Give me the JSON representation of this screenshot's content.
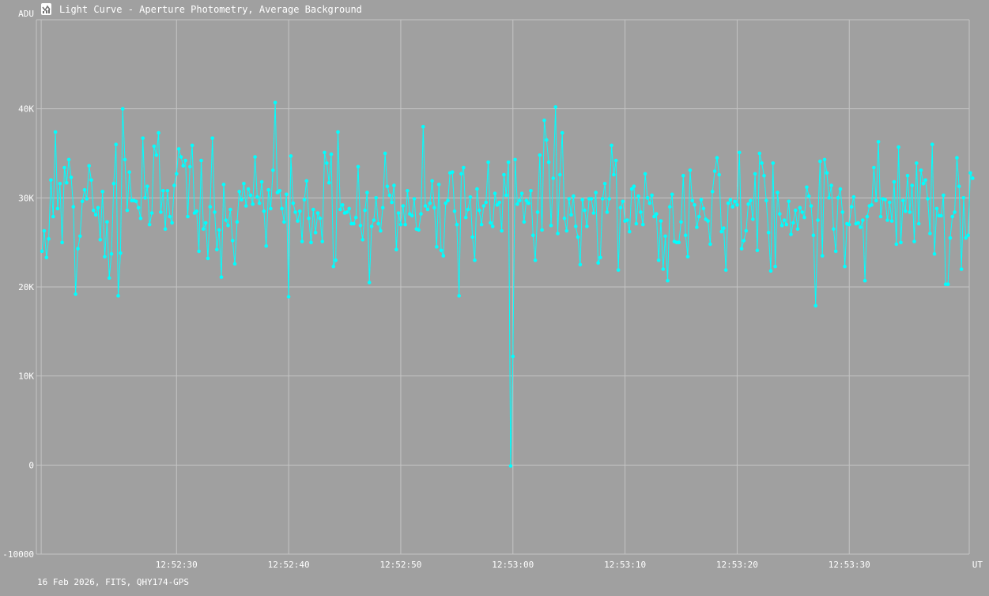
{
  "window": {
    "title": "Light Curve - Aperture Photometry, Average Background",
    "icon": "light-curve-app-icon"
  },
  "footer": {
    "text": "16 Feb 2026, FITS, QHY174-GPS"
  },
  "colors": {
    "background": "#a0a0a0",
    "grid": "#c4c4c4",
    "series": "#00ffff",
    "text": "#ffffff"
  },
  "chart_data": {
    "type": "line",
    "ylabel": "ADU",
    "xlabel": "UT",
    "ylim": [
      -10000,
      50000
    ],
    "y_ticks": [
      {
        "value": 40000,
        "label": "40K"
      },
      {
        "value": 30000,
        "label": "30K"
      },
      {
        "value": 20000,
        "label": "20K"
      },
      {
        "value": 10000,
        "label": "10K"
      },
      {
        "value": 0,
        "label": "0"
      },
      {
        "value": -10000,
        "label": "-10000"
      }
    ],
    "x_ticks": [
      {
        "value": 30,
        "label": "12:52:30"
      },
      {
        "value": 40,
        "label": "12:52:40"
      },
      {
        "value": 50,
        "label": "12:52:50"
      },
      {
        "value": 60,
        "label": "12:53:00"
      },
      {
        "value": 70,
        "label": "12:53:10"
      },
      {
        "value": 80,
        "label": "12:53:20"
      },
      {
        "value": 90,
        "label": "12:53:30"
      }
    ],
    "x_unit": "seconds after 12:52:00 UT",
    "xlim": [
      17.5,
      100.7
    ],
    "grid": true,
    "series": [
      {
        "name": "",
        "x_start": 18.0,
        "x_step": 0.2,
        "values": [
          24000,
          26300,
          23300,
          25400,
          32000,
          27900,
          37400,
          28800,
          31600,
          25000,
          33400,
          31700,
          34300,
          32300,
          29000,
          19200,
          24300,
          25700,
          29600,
          30900,
          29900,
          33600,
          32000,
          28600,
          28100,
          28900,
          25300,
          30700,
          23400,
          27300,
          21000,
          23700,
          31600,
          36000,
          19000,
          23800,
          40000,
          34300,
          28600,
          32900,
          29700,
          29700,
          29600,
          28900,
          27700,
          36700,
          30000,
          31300,
          27000,
          28300,
          35800,
          34800,
          37300,
          28400,
          30800,
          26500,
          30800,
          27900,
          27200,
          31400,
          32700,
          35500,
          34600,
          33600,
          34200,
          27900,
          33500,
          35900,
          28300,
          28500,
          24000,
          34200,
          26500,
          27200,
          23200,
          29000,
          36700,
          28400,
          24200,
          26400,
          21100,
          31500,
          27500,
          26900,
          28700,
          25200,
          22600,
          27300,
          30700,
          29800,
          31600,
          29100,
          31000,
          30300,
          29300,
          34600,
          30100,
          29400,
          31800,
          28500,
          24600,
          30900,
          28800,
          33100,
          40700,
          30600,
          30800,
          28800,
          27300,
          30400,
          18900,
          34700,
          29400,
          28400,
          27400,
          28500,
          25100,
          29800,
          31900,
          27700,
          25000,
          28700,
          26100,
          28300,
          27700,
          25100,
          35100,
          33900,
          31700,
          34900,
          22300,
          23000,
          37400,
          28700,
          29200,
          28300,
          28400,
          28800,
          27100,
          27100,
          27800,
          33500,
          26900,
          25300,
          28600,
          30600,
          20500,
          26800,
          27500,
          30000,
          27100,
          26300,
          28900,
          35000,
          31300,
          30300,
          29500,
          31400,
          24200,
          28300,
          27000,
          29100,
          27000,
          30800,
          28200,
          28000,
          29900,
          26500,
          26400,
          28200,
          38000,
          29100,
          28700,
          29400,
          31900,
          28900,
          24500,
          31500,
          24100,
          23500,
          29400,
          29700,
          32800,
          32900,
          28500,
          27000,
          19000,
          32700,
          33400,
          27800,
          28700,
          30100,
          25600,
          23000,
          31000,
          28600,
          27000,
          29100,
          29500,
          34000,
          27200,
          26800,
          30500,
          29200,
          29500,
          26300,
          32600,
          30300,
          34000,
          -100,
          12200,
          34300,
          29300,
          29700,
          30500,
          27300,
          29700,
          29400,
          30800,
          25800,
          23000,
          28400,
          34800,
          26400,
          38700,
          36500,
          34000,
          26900,
          32200,
          40200,
          26000,
          32600,
          37300,
          27700,
          26300,
          29900,
          28100,
          30200,
          26800,
          25600,
          22500,
          29800,
          28600,
          26800,
          29900,
          29900,
          28300,
          30600,
          22700,
          23300,
          29900,
          31600,
          28400,
          29900,
          35900,
          32600,
          34200,
          21900,
          28900,
          29600,
          27400,
          27500,
          26200,
          31000,
          31300,
          27100,
          30200,
          28400,
          27000,
          32700,
          30000,
          29400,
          30300,
          27900,
          28200,
          23000,
          27400,
          22000,
          25700,
          20700,
          29000,
          30400,
          25100,
          25000,
          25000,
          27300,
          32500,
          25800,
          23400,
          33100,
          29700,
          29200,
          26700,
          27900,
          29800,
          28800,
          27600,
          27400,
          24800,
          30700,
          33000,
          34500,
          32600,
          26200,
          26600,
          21900,
          29400,
          29800,
          29000,
          29600,
          29200,
          35100,
          24300,
          25200,
          26300,
          29300,
          29700,
          27600,
          32700,
          24100,
          35000,
          33900,
          32500,
          29700,
          26100,
          21800,
          33900,
          22300,
          30600,
          28200,
          26900,
          27500,
          27000,
          29600,
          25900,
          27200,
          28600,
          26500,
          28900,
          28400,
          27800,
          31200,
          30200,
          29100,
          25800,
          17900,
          27500,
          34100,
          23500,
          34300,
          32800,
          30000,
          31400,
          26500,
          24000,
          30000,
          31000,
          28400,
          22300,
          27100,
          27000,
          29000,
          30100,
          27100,
          27200,
          26700,
          27500,
          20700,
          27900,
          29100,
          29200,
          33400,
          29700,
          36300,
          27900,
          29900,
          29800,
          27500,
          29500,
          27400,
          31800,
          24800,
          35700,
          25000,
          29700,
          28500,
          32500,
          28400,
          31400,
          25100,
          33900,
          27100,
          33100,
          31600,
          32000,
          29900,
          26000,
          36000,
          23700,
          28800,
          28000,
          28000,
          30300,
          20300,
          20300,
          25500,
          27900,
          28400,
          34500,
          31300,
          22000,
          30000,
          25500,
          25800,
          32800,
          32200
        ]
      }
    ]
  }
}
